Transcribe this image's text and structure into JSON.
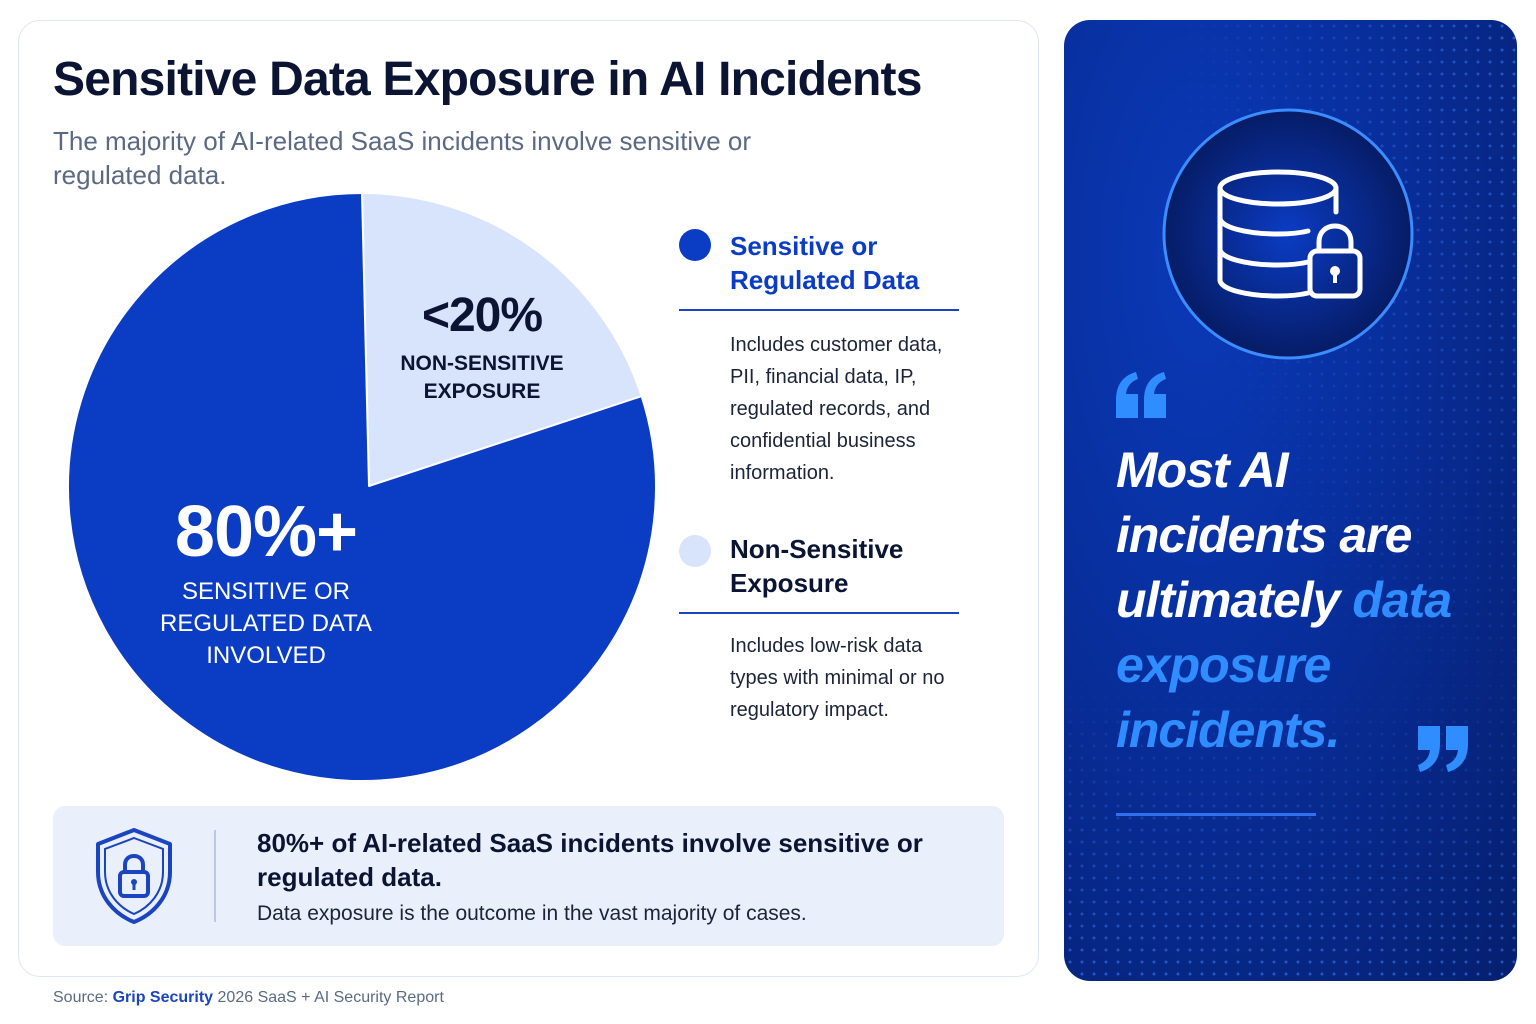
{
  "header": {
    "title": "Sensitive Data Exposure in AI Incidents",
    "subtitle": "The majority of AI-related SaaS incidents involve sensitive or regulated data."
  },
  "chart_data": {
    "type": "pie",
    "title": "Sensitive Data Exposure in AI Incidents",
    "slices": [
      {
        "name": "Non-Sensitive Exposure",
        "value": 20,
        "label_value": "<20%",
        "label_caption": "NON-SENSITIVE EXPOSURE",
        "color": "#d7e4fb"
      },
      {
        "name": "Sensitive or Regulated Data",
        "value": 80,
        "label_value": "80%+",
        "label_caption": "SENSITIVE OR REGULATED DATA INVOLVED",
        "color": "#0b3cc4"
      }
    ]
  },
  "legend": [
    {
      "title": "Sensitive or Regulated Data",
      "description": "Includes customer data, PII, financial data, IP, regulated records, and confidential business information.",
      "color": "#0b3cc4"
    },
    {
      "title": "Non-Sensitive Exposure",
      "description": "Includes low-risk data types with minimal or no regulatory impact.",
      "color": "#d7e4fb"
    }
  ],
  "callout": {
    "icon": "shield-lock-icon",
    "title": "80%+ of AI-related SaaS incidents involve sensitive or regulated data.",
    "text": "Data exposure is the outcome in the vast majority of cases."
  },
  "source": {
    "prefix": "Source:",
    "brand": "Grip Security",
    "rest": "2026 SaaS + AI Security Report"
  },
  "side_panel": {
    "icon": "database-lock-icon",
    "quote_part1": "Most AI incidents are ultimately",
    "quote_part2": "data exposure incidents.",
    "colors": {
      "background": "#082f9e",
      "accent": "#2f8dff"
    }
  }
}
